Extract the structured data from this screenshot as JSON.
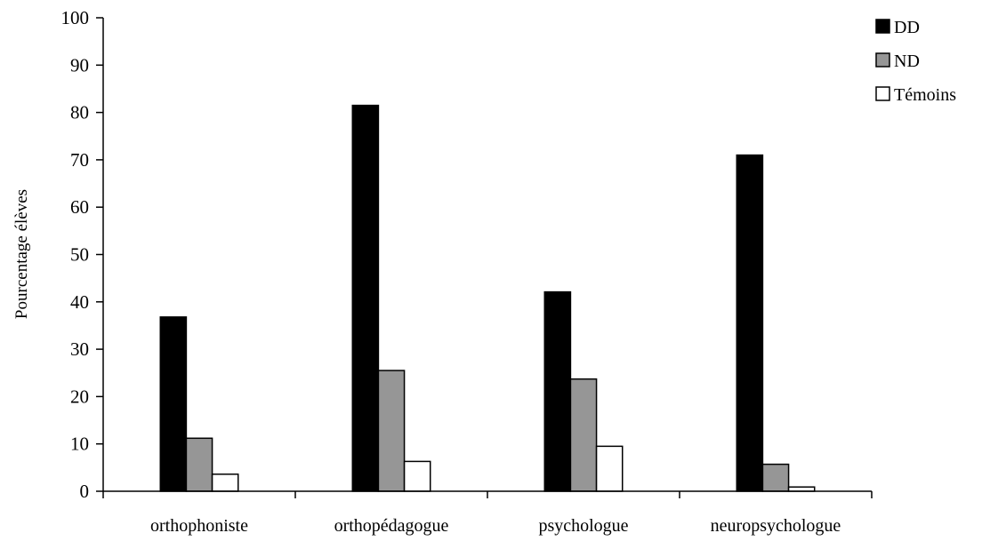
{
  "chart_data": {
    "type": "bar",
    "title": "",
    "xlabel": "",
    "ylabel": "Pourcentage élèves",
    "ylim": [
      0,
      100
    ],
    "yticks": [
      0,
      10,
      20,
      30,
      40,
      50,
      60,
      70,
      80,
      90,
      100
    ],
    "grid": false,
    "legend_position": "top-right",
    "categories": [
      "orthophoniste",
      "orthopédagogue",
      "psychologue",
      "neuropsychologue"
    ],
    "series": [
      {
        "name": "DD",
        "color": "#000000",
        "values": [
          36.8,
          81.5,
          42.1,
          71.0
        ]
      },
      {
        "name": "ND",
        "color": "#969696",
        "values": [
          11.2,
          25.5,
          23.7,
          5.7
        ]
      },
      {
        "name": "Témoins",
        "color": "#ffffff",
        "values": [
          3.6,
          6.3,
          9.5,
          0.9
        ]
      }
    ]
  }
}
